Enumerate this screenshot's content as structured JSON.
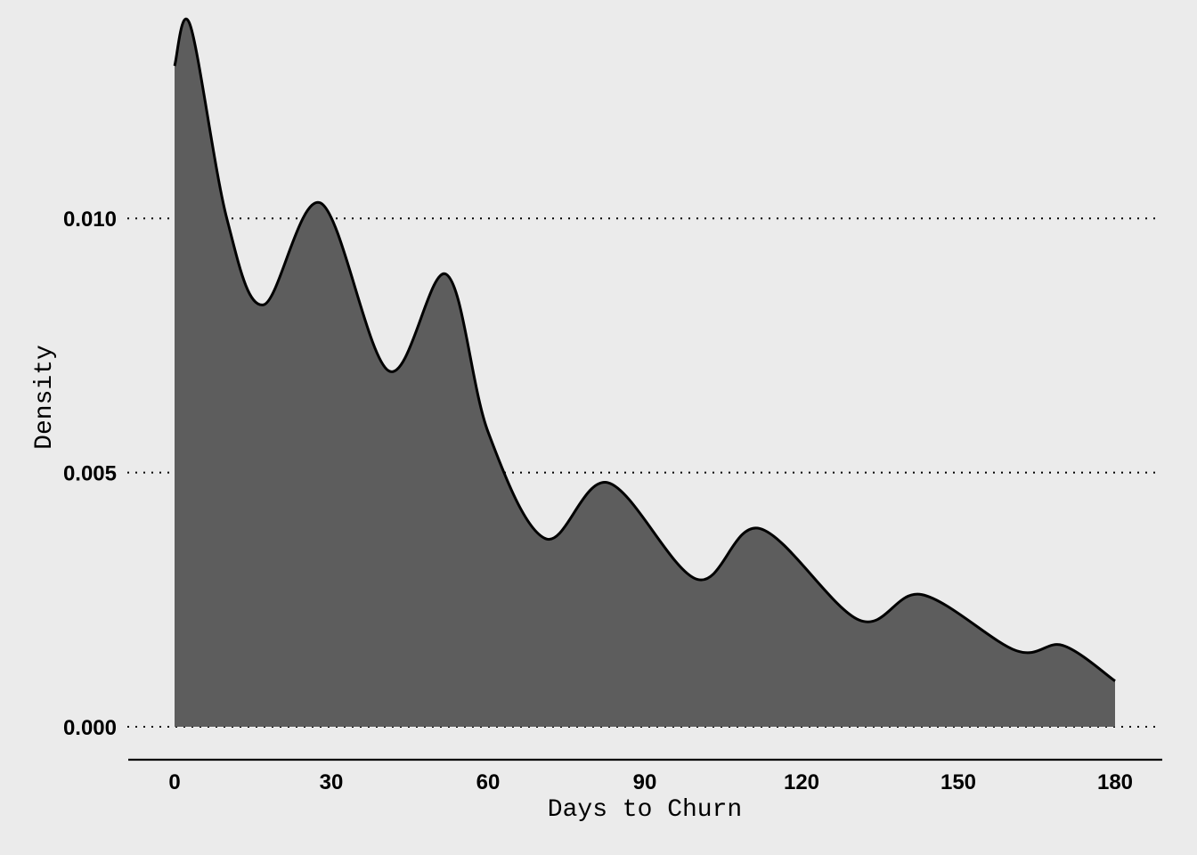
{
  "chart_data": {
    "type": "area",
    "xlabel": "Days to Churn",
    "ylabel": "Density",
    "xlim": [
      0,
      180
    ],
    "ylim": [
      0,
      0.013
    ],
    "x_ticks": [
      0,
      30,
      60,
      90,
      120,
      150,
      180
    ],
    "x_tick_labels": [
      "0",
      "30",
      "60",
      "90",
      "120",
      "150",
      "180"
    ],
    "y_ticks": [
      0,
      0.005,
      0.01
    ],
    "y_tick_labels": [
      "0.000",
      "0.005",
      "0.010"
    ],
    "grid": "horizontal dotted",
    "fill_color": "#5d5d5d",
    "line_color": "#000000",
    "background": "#ebebeb",
    "x": [
      0,
      3,
      10,
      17,
      28,
      41,
      52,
      60,
      71,
      83,
      100,
      112,
      131,
      143,
      161,
      170,
      180
    ],
    "y": [
      0.013,
      0.0138,
      0.01,
      0.0083,
      0.0103,
      0.007,
      0.0089,
      0.0058,
      0.0037,
      0.0048,
      0.0029,
      0.0039,
      0.0021,
      0.0026,
      0.0015,
      0.0016,
      0.0009
    ]
  }
}
